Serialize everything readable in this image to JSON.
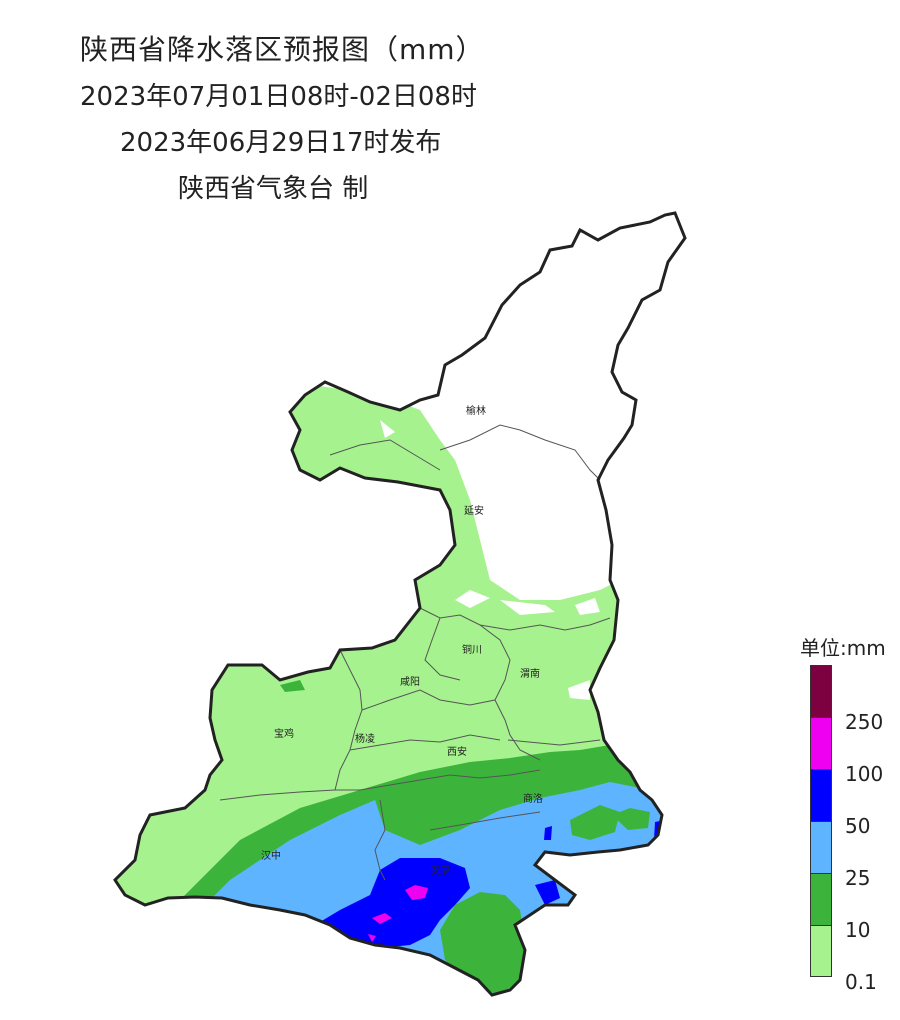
{
  "title": {
    "line1": "陕西省降水落区预报图（mm）",
    "line2": "2023年07月01日08时-02日08时",
    "line3": "2023年06月29日17时发布",
    "line4": "陕西省气象台 制"
  },
  "cities": [
    "榆林",
    "延安",
    "铜川",
    "咸阳",
    "渭南",
    "宝鸡",
    "杨凌",
    "西安",
    "商洛",
    "汉中",
    "安康"
  ],
  "legend": {
    "unit": "单位:mm",
    "labels": [
      "250",
      "100",
      "50",
      "25",
      "10",
      "0.1"
    ],
    "colors": [
      "#7d0040",
      "#f000f0",
      "#0000ff",
      "#5fb4ff",
      "#3cb43c",
      "#a6f28f"
    ]
  }
}
